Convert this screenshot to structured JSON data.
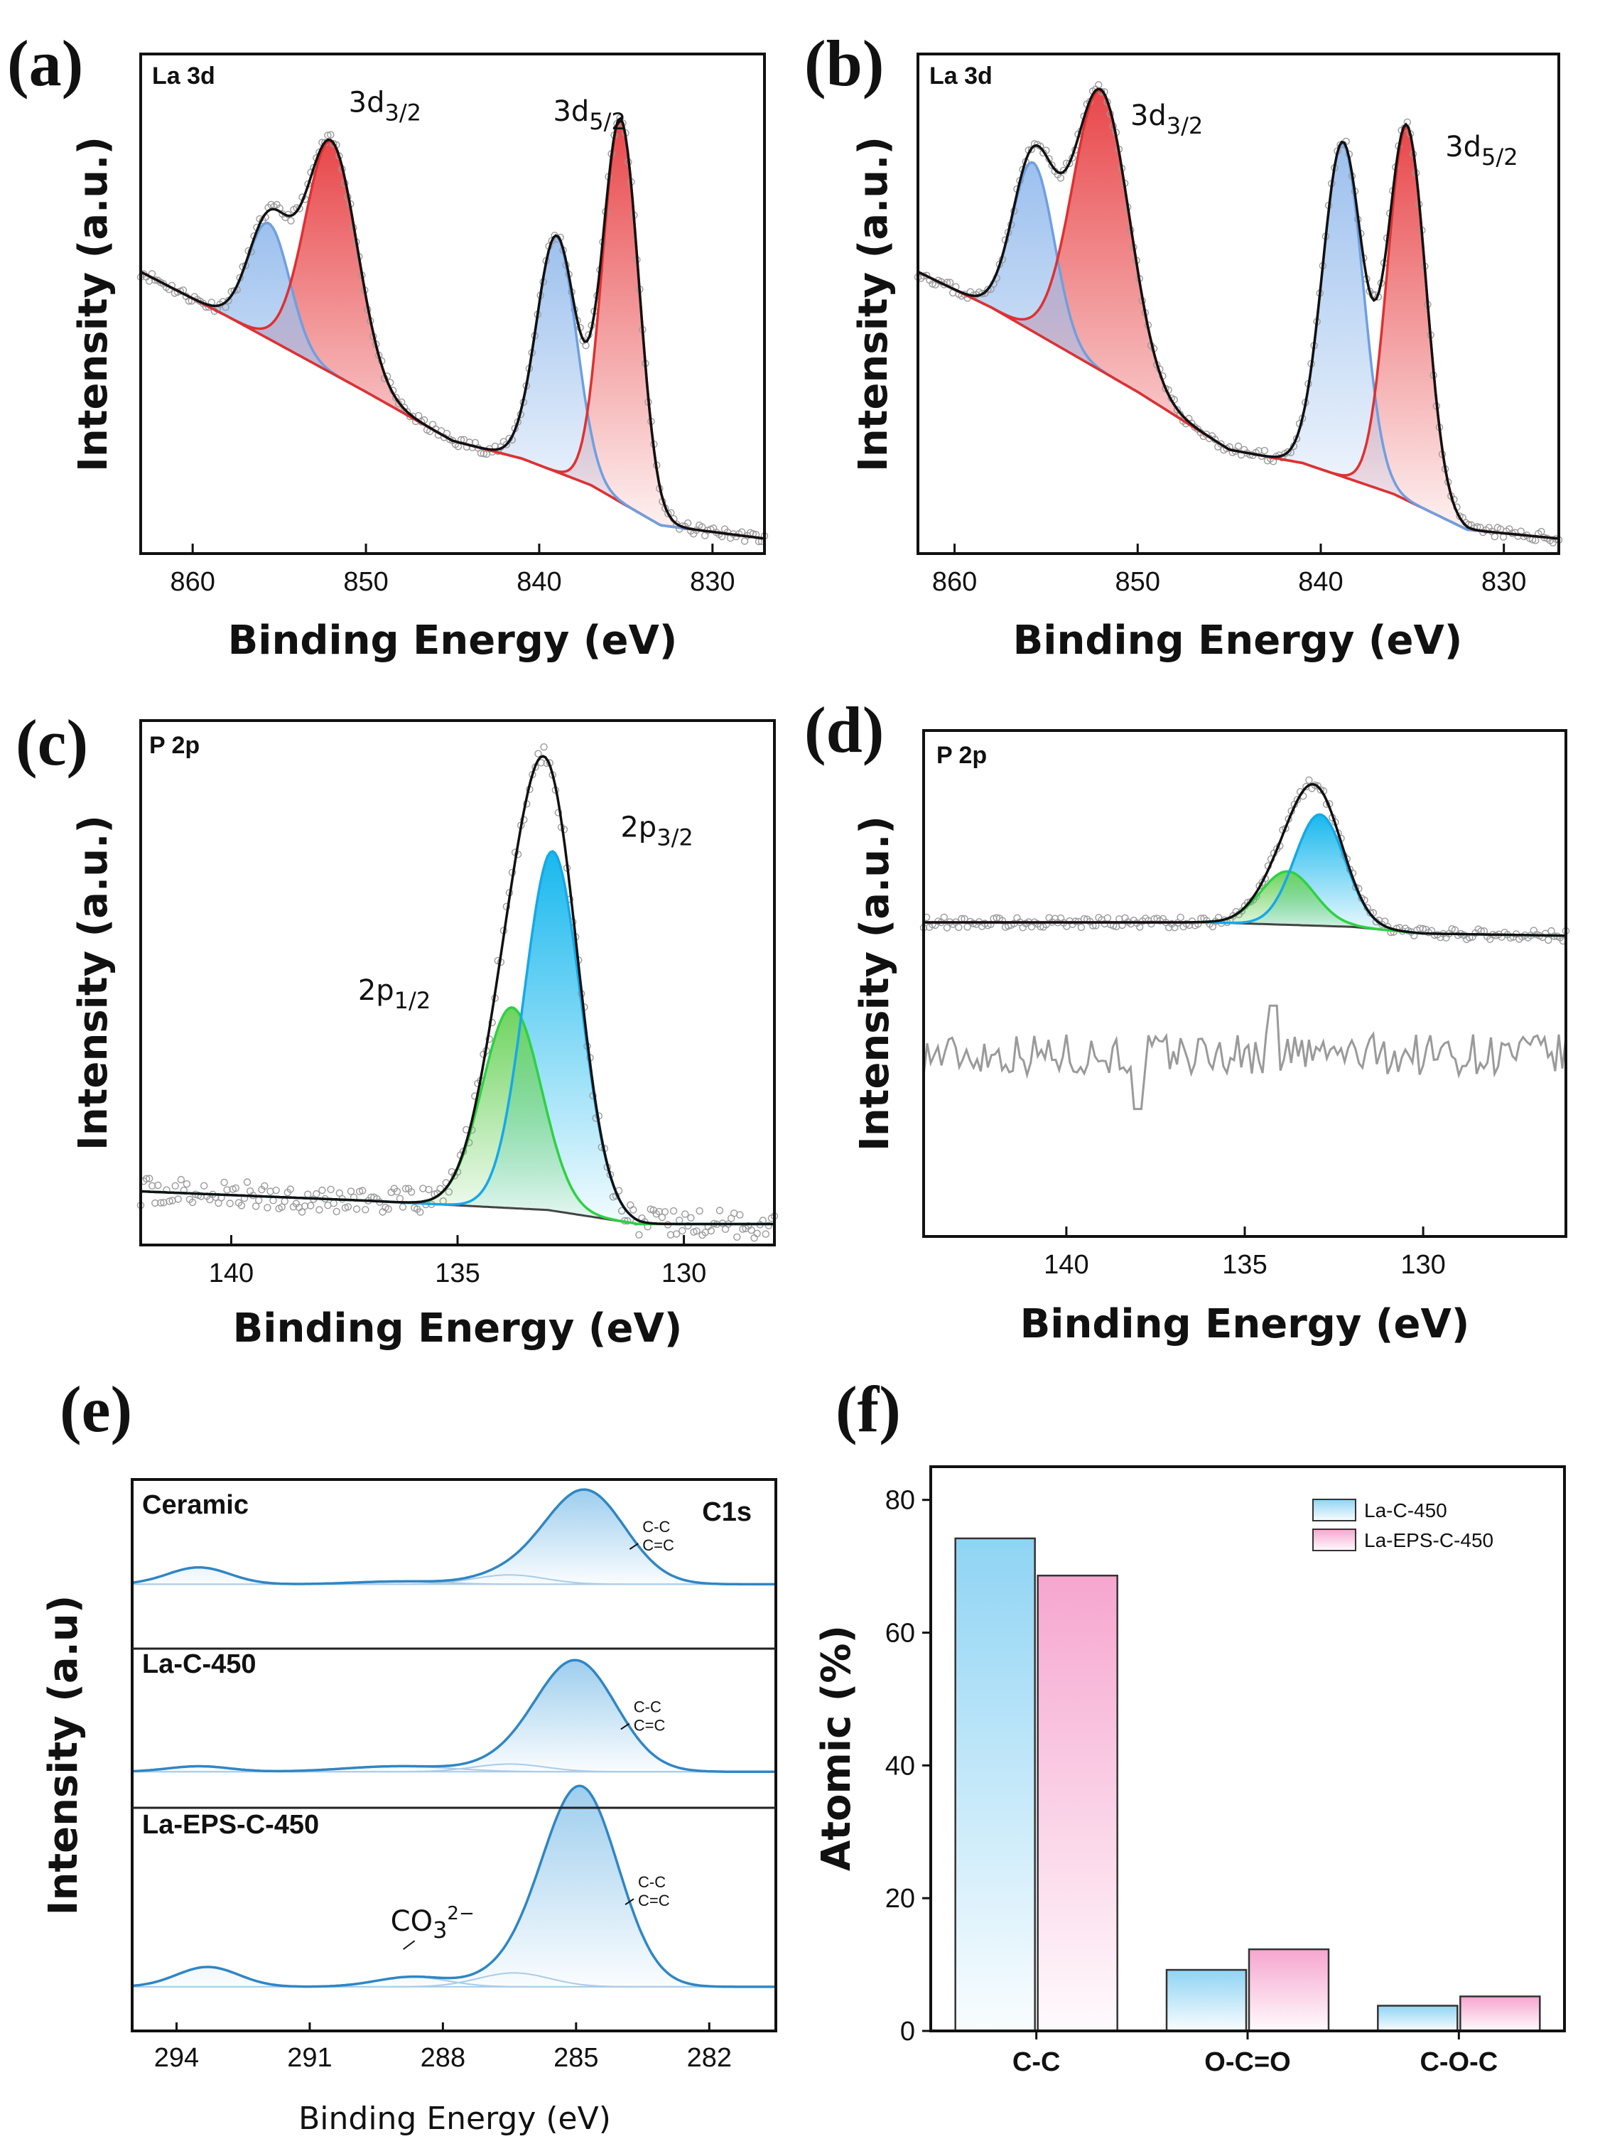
{
  "chart_data": [
    {
      "id": "a",
      "panel_label": "(a)",
      "type": "line",
      "tag": "La 3d",
      "xlabel": "Binding Energy (eV)",
      "ylabel": "Intensity (a.u.)",
      "xlim": [
        863,
        827
      ],
      "ylim": [
        0,
        1
      ],
      "xticks": [
        860,
        850,
        840,
        830
      ],
      "background": {
        "x": [
          863,
          858,
          850,
          845,
          841,
          837,
          833,
          827
        ],
        "y": [
          0.6,
          0.5,
          0.33,
          0.22,
          0.18,
          0.12,
          0.03,
          0.0
        ]
      },
      "peaks": [
        {
          "center": 855.6,
          "sigma": 1.2,
          "height": 0.26,
          "color": "#6f9fe0"
        },
        {
          "center": 852.0,
          "sigma": 1.5,
          "height": 0.52,
          "color": "#e03030"
        },
        {
          "center": 839.0,
          "sigma": 1.15,
          "height": 0.53,
          "color": "#6f9fe0"
        },
        {
          "center": 835.3,
          "sigma": 1.05,
          "height": 0.86,
          "color": "#e03030"
        }
      ],
      "fills": [
        {
          "peak": 1,
          "color": "#e8474a"
        },
        {
          "peak": 3,
          "color": "#e8474a"
        },
        {
          "peak": 0,
          "color": "#9cc0ee"
        },
        {
          "peak": 2,
          "color": "#9cc0ee"
        }
      ],
      "annotations": [
        {
          "label": "3d",
          "sub": "3/2",
          "x": 851.0,
          "y": 0.96
        },
        {
          "label": "3d",
          "sub": "5/2",
          "x": 839.2,
          "y": 0.94
        }
      ]
    },
    {
      "id": "b",
      "panel_label": "(b)",
      "type": "line",
      "tag": "La 3d",
      "xlabel": "Binding Energy (eV)",
      "ylabel": "Intensity (a.u.)",
      "xlim": [
        862,
        827
      ],
      "ylim": [
        0,
        1
      ],
      "xticks": [
        860,
        850,
        840,
        830
      ],
      "background": {
        "x": [
          862,
          858,
          850,
          845,
          841,
          836,
          832,
          827
        ],
        "y": [
          0.6,
          0.52,
          0.33,
          0.2,
          0.17,
          0.1,
          0.02,
          0.0
        ]
      },
      "peaks": [
        {
          "center": 855.7,
          "sigma": 1.15,
          "height": 0.38,
          "color": "#6f9fe0"
        },
        {
          "center": 852.0,
          "sigma": 1.55,
          "height": 0.63,
          "color": "#e03030"
        },
        {
          "center": 838.8,
          "sigma": 1.1,
          "height": 0.75,
          "color": "#6f9fe0"
        },
        {
          "center": 835.3,
          "sigma": 1.05,
          "height": 0.84,
          "color": "#e03030"
        }
      ],
      "fills": [
        {
          "peak": 1,
          "color": "#e8474a"
        },
        {
          "peak": 3,
          "color": "#e8474a"
        },
        {
          "peak": 0,
          "color": "#9cc0ee"
        },
        {
          "peak": 2,
          "color": "#9cc0ee"
        }
      ],
      "annotations": [
        {
          "label": "3d",
          "sub": "3/2",
          "x": 850.4,
          "y": 0.93
        },
        {
          "label": "3d",
          "sub": "5/2",
          "x": 833.2,
          "y": 0.86
        }
      ]
    },
    {
      "id": "c",
      "panel_label": "(c)",
      "type": "line",
      "tag": "P 2p",
      "xlabel": "Binding Energy (eV)",
      "ylabel": "Intensity (a.u.)",
      "xlim": [
        142,
        128
      ],
      "ylim": [
        0,
        1
      ],
      "xticks": [
        140,
        135,
        130
      ],
      "background": {
        "x": [
          142,
          137,
          135,
          133,
          131,
          128
        ],
        "y": [
          0.07,
          0.05,
          0.04,
          0.03,
          0.0,
          0.0
        ]
      },
      "peaks": [
        {
          "center": 133.8,
          "sigma": 0.65,
          "height": 0.43,
          "color": "#2ed143"
        },
        {
          "center": 132.9,
          "sigma": 0.62,
          "height": 0.77,
          "color": "#16a8e8"
        }
      ],
      "fills": [
        {
          "peak": 1,
          "color": "#18b8ee"
        },
        {
          "peak": 0,
          "color": "#6ed35e"
        }
      ],
      "annotations": [
        {
          "label": "2p",
          "sub": "3/2",
          "x": 131.4,
          "y": 0.83
        },
        {
          "label": "2p",
          "sub": "1/2",
          "x": 137.2,
          "y": 0.48
        }
      ]
    },
    {
      "id": "d",
      "panel_label": "(d)",
      "type": "line",
      "tag": "P  2p",
      "xlabel": "Binding Energy (eV)",
      "ylabel": "Intensity (a.u.)",
      "xlim": [
        144,
        126
      ],
      "ylim": [
        0,
        1
      ],
      "xticks": [
        140,
        135,
        130
      ],
      "baseline": 0.66,
      "background": {
        "x": [
          144,
          138,
          136,
          134,
          132,
          130,
          126
        ],
        "y": [
          0.0,
          0.0,
          0.0,
          -0.005,
          -0.01,
          -0.025,
          -0.03
        ]
      },
      "peaks": [
        {
          "center": 133.8,
          "sigma": 0.75,
          "height": 0.12,
          "color": "#2ed143"
        },
        {
          "center": 132.9,
          "sigma": 0.7,
          "height": 0.25,
          "color": "#16a8e8"
        }
      ],
      "fills": [
        {
          "peak": 1,
          "color": "#18b8ee"
        },
        {
          "peak": 0,
          "color": "#6ed35e"
        }
      ],
      "annotations": []
    },
    {
      "id": "e",
      "panel_label": "(e)",
      "type": "line",
      "tag": "C1s",
      "xlabel": "Binding Energy (eV)",
      "ylabel": "Intensity (a.u)",
      "xlim": [
        295,
        280.5
      ],
      "ylim": [
        0,
        1
      ],
      "xticks": [
        294,
        291,
        288,
        285,
        282
      ],
      "series": [
        {
          "name": "Ceramic",
          "offset": 0.81,
          "scale": 0.17,
          "peaks": [
            {
              "center": 284.8,
              "sigma": 0.9,
              "height": 1.0
            },
            {
              "center": 293.5,
              "sigma": 0.7,
              "height": 0.18
            },
            {
              "center": 286.5,
              "sigma": 0.8,
              "height": 0.1
            },
            {
              "center": 289.0,
              "sigma": 1.0,
              "height": 0.03
            }
          ],
          "label_a": "C-C",
          "label_b": "C=C"
        },
        {
          "name": "La-C-450",
          "offset": 0.47,
          "scale": 0.2,
          "peaks": [
            {
              "center": 285.0,
              "sigma": 0.9,
              "height": 1.0
            },
            {
              "center": 293.5,
              "sigma": 0.7,
              "height": 0.05
            },
            {
              "center": 286.5,
              "sigma": 0.8,
              "height": 0.07
            },
            {
              "center": 289.0,
              "sigma": 1.2,
              "height": 0.05
            }
          ],
          "label_a": "C-C",
          "label_b": "C=C"
        },
        {
          "name": "La-EPS-C-450",
          "offset": 0.08,
          "scale": 0.36,
          "peaks": [
            {
              "center": 284.9,
              "sigma": 0.85,
              "height": 1.0
            },
            {
              "center": 293.3,
              "sigma": 0.7,
              "height": 0.1
            },
            {
              "center": 286.4,
              "sigma": 0.8,
              "height": 0.07
            },
            {
              "center": 288.7,
              "sigma": 0.8,
              "height": 0.05
            }
          ],
          "label_a": "C-C",
          "label_b": "C=C"
        }
      ],
      "annotation": {
        "text": "CO",
        "sub": "3",
        "sup": "2−"
      }
    },
    {
      "id": "f",
      "panel_label": "(f)",
      "type": "bar",
      "xlabel": "",
      "ylabel": "Atomic (%)",
      "ylim": [
        0,
        85
      ],
      "yticks": [
        0,
        20,
        40,
        60,
        80
      ],
      "categories": [
        "C-C",
        "O-C=O",
        "C-O-C"
      ],
      "series": [
        {
          "name": "La-C-450",
          "values": [
            74.2,
            9.2,
            3.8
          ],
          "color": "#8fd4f4"
        },
        {
          "name": "La-EPS-C-450",
          "values": [
            68.6,
            12.3,
            5.2
          ],
          "color": "#f6a6cf"
        }
      ],
      "legend": "top-right"
    }
  ]
}
